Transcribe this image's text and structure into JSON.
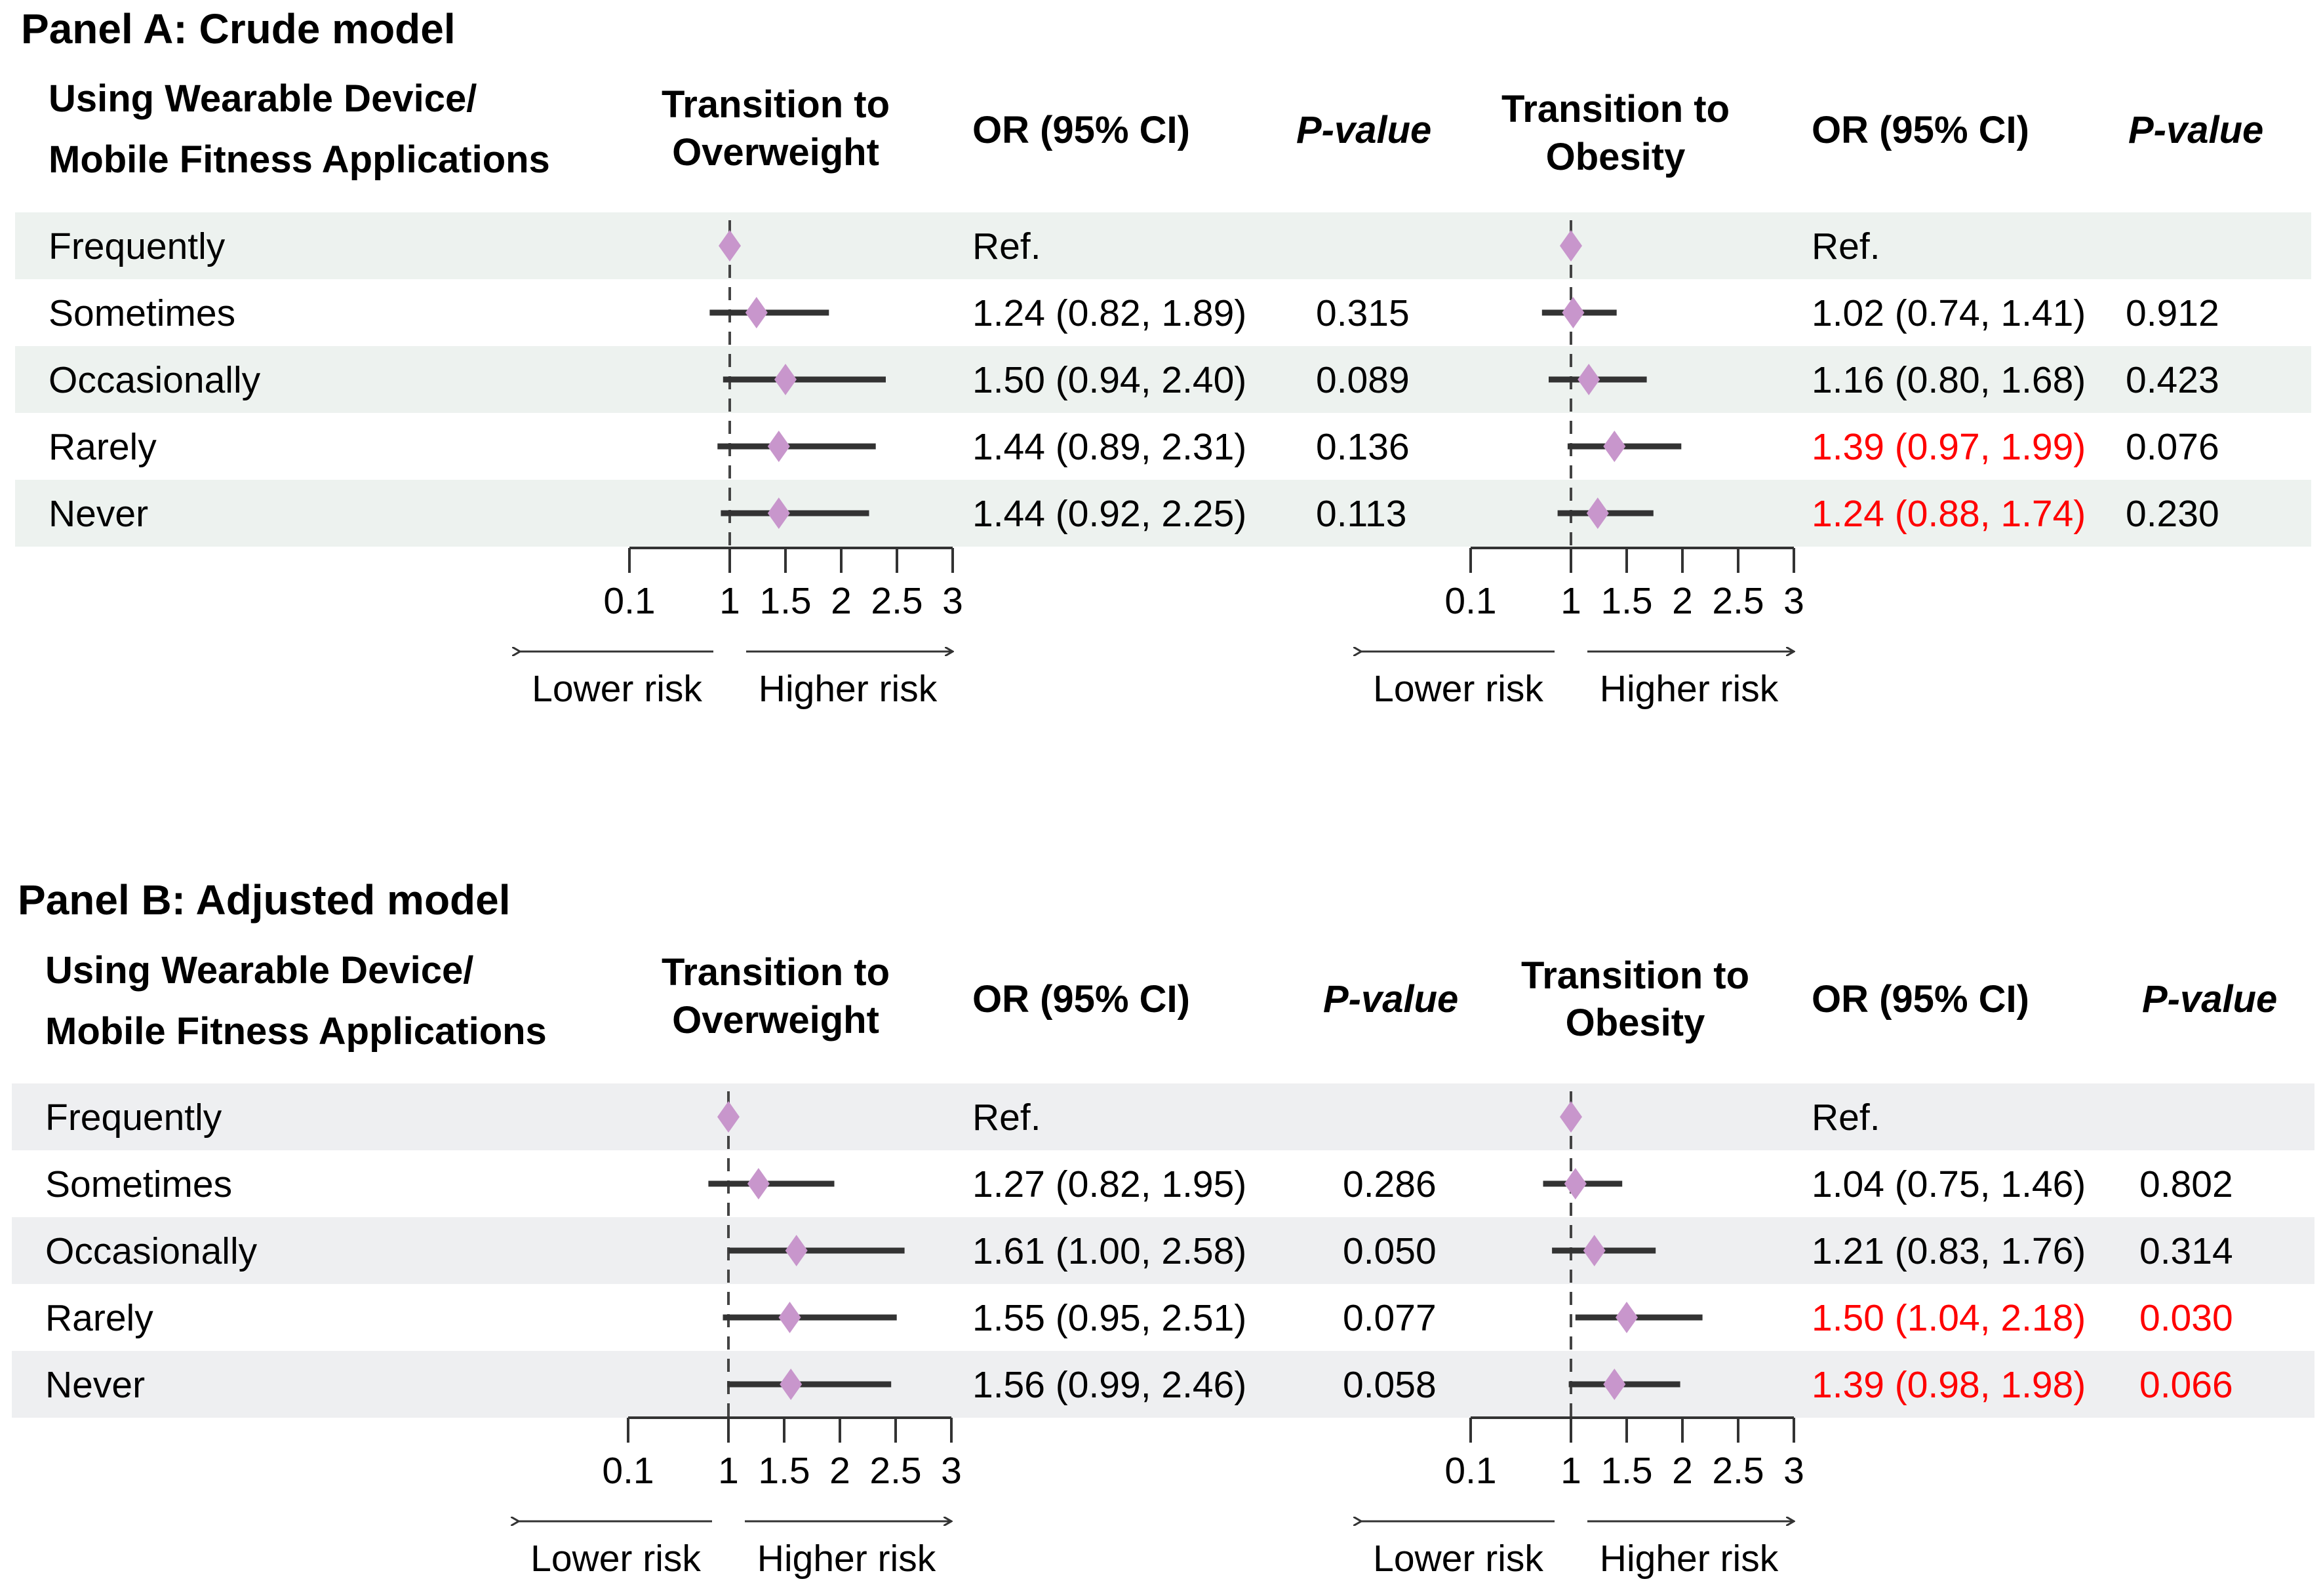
{
  "colors": {
    "diamond": "#C896CC",
    "ci_line": "#333333",
    "highlight_text": "#FF0000",
    "band_panel_a": "#EDF2EF",
    "band_panel_b": "#EEEFF1"
  },
  "chart_data": [
    {
      "type": "forest",
      "title": "Panel A: Crude model",
      "headers": {
        "category": [
          "Using Wearable Device/",
          "Mobile Fitness Applications"
        ],
        "overweight": [
          "Transition to",
          "Overweight"
        ],
        "obesity": [
          "Transition to",
          "Obesity"
        ],
        "or": "OR (95% CI)",
        "p": "P-value"
      },
      "axis": {
        "scale": "linear",
        "xlim": [
          0.1,
          3
        ],
        "reference": 1,
        "ticks": [
          "0.1",
          "1",
          "1.5",
          "2",
          "2.5",
          "3"
        ],
        "lower_label": "Lower risk",
        "higher_label": "Higher risk"
      },
      "rows": [
        {
          "category": "Frequently",
          "overweight": {
            "or": 1,
            "ref": true,
            "text": "Ref.",
            "p": ""
          },
          "obesity": {
            "or": 1,
            "ref": true,
            "text": "Ref.",
            "p": ""
          }
        },
        {
          "category": "Sometimes",
          "overweight": {
            "or": 1.24,
            "lo": 0.82,
            "hi": 1.89,
            "text": "1.24 (0.82, 1.89)",
            "p": "0.315",
            "highlight": false,
            "p_highlight": false
          },
          "obesity": {
            "or": 1.02,
            "lo": 0.74,
            "hi": 1.41,
            "text": "1.02 (0.74, 1.41)",
            "p": "0.912",
            "highlight": false,
            "p_highlight": false
          }
        },
        {
          "category": "Occasionally",
          "overweight": {
            "or": 1.5,
            "lo": 0.94,
            "hi": 2.4,
            "text": "1.50 (0.94, 2.40)",
            "p": "0.089",
            "highlight": false,
            "p_highlight": false
          },
          "obesity": {
            "or": 1.16,
            "lo": 0.8,
            "hi": 1.68,
            "text": "1.16 (0.80, 1.68)",
            "p": "0.423",
            "highlight": false,
            "p_highlight": false
          }
        },
        {
          "category": "Rarely",
          "overweight": {
            "or": 1.44,
            "lo": 0.89,
            "hi": 2.31,
            "text": "1.44 (0.89, 2.31)",
            "p": "0.136",
            "highlight": false,
            "p_highlight": false
          },
          "obesity": {
            "or": 1.39,
            "lo": 0.97,
            "hi": 1.99,
            "text": "1.39 (0.97, 1.99)",
            "p": "0.076",
            "highlight": true,
            "p_highlight": false
          }
        },
        {
          "category": "Never",
          "overweight": {
            "or": 1.44,
            "lo": 0.92,
            "hi": 2.25,
            "text": "1.44 (0.92, 2.25)",
            "p": "0.113",
            "highlight": false,
            "p_highlight": false
          },
          "obesity": {
            "or": 1.24,
            "lo": 0.88,
            "hi": 1.74,
            "text": "1.24 (0.88, 1.74)",
            "p": "0.230",
            "highlight": true,
            "p_highlight": false
          }
        }
      ]
    },
    {
      "type": "forest",
      "title": "Panel B: Adjusted model",
      "headers": {
        "category": [
          "Using Wearable Device/",
          "Mobile Fitness Applications"
        ],
        "overweight": [
          "Transition to",
          "Overweight"
        ],
        "obesity": [
          "Transition to",
          "Obesity"
        ],
        "or": "OR (95% CI)",
        "p": "P-value"
      },
      "axis": {
        "scale": "linear",
        "xlim": [
          0.1,
          3
        ],
        "reference": 1,
        "ticks": [
          "0.1",
          "1",
          "1.5",
          "2",
          "2.5",
          "3"
        ],
        "lower_label": "Lower risk",
        "higher_label": "Higher risk"
      },
      "rows": [
        {
          "category": "Frequently",
          "overweight": {
            "or": 1,
            "ref": true,
            "text": "Ref.",
            "p": ""
          },
          "obesity": {
            "or": 1,
            "ref": true,
            "text": "Ref.",
            "p": ""
          }
        },
        {
          "category": "Sometimes",
          "overweight": {
            "or": 1.27,
            "lo": 0.82,
            "hi": 1.95,
            "text": "1.27 (0.82, 1.95)",
            "p": "0.286",
            "highlight": false,
            "p_highlight": false
          },
          "obesity": {
            "or": 1.04,
            "lo": 0.75,
            "hi": 1.46,
            "text": "1.04 (0.75, 1.46)",
            "p": "0.802",
            "highlight": false,
            "p_highlight": false
          }
        },
        {
          "category": "Occasionally",
          "overweight": {
            "or": 1.61,
            "lo": 1.0,
            "hi": 2.58,
            "text": "1.61 (1.00, 2.58)",
            "p": "0.050",
            "highlight": false,
            "p_highlight": false
          },
          "obesity": {
            "or": 1.21,
            "lo": 0.83,
            "hi": 1.76,
            "text": "1.21 (0.83, 1.76)",
            "p": "0.314",
            "highlight": false,
            "p_highlight": false
          }
        },
        {
          "category": "Rarely",
          "overweight": {
            "or": 1.55,
            "lo": 0.95,
            "hi": 2.51,
            "text": "1.55 (0.95, 2.51)",
            "p": "0.077",
            "highlight": false,
            "p_highlight": false
          },
          "obesity": {
            "or": 1.5,
            "lo": 1.04,
            "hi": 2.18,
            "text": "1.50 (1.04, 2.18)",
            "p": "0.030",
            "highlight": true,
            "p_highlight": true
          }
        },
        {
          "category": "Never",
          "overweight": {
            "or": 1.56,
            "lo": 0.99,
            "hi": 2.46,
            "text": "1.56 (0.99, 2.46)",
            "p": "0.058",
            "highlight": false,
            "p_highlight": false
          },
          "obesity": {
            "or": 1.39,
            "lo": 0.98,
            "hi": 1.98,
            "text": "1.39 (0.98, 1.98)",
            "p": "0.066",
            "highlight": true,
            "p_highlight": true
          }
        }
      ]
    }
  ]
}
